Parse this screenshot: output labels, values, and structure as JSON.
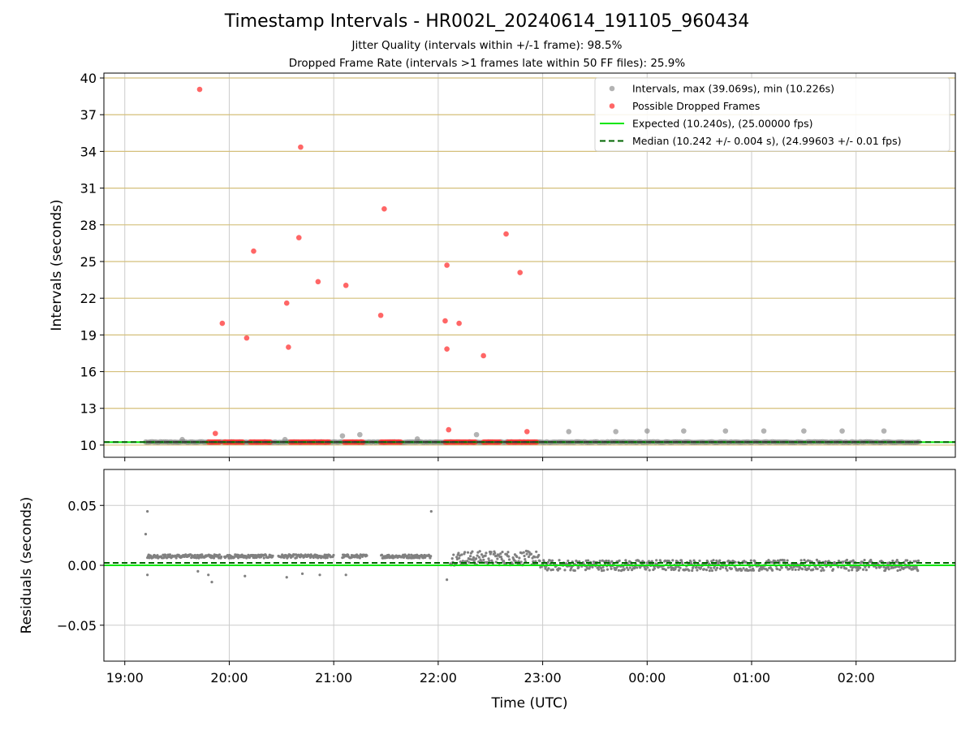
{
  "figure": {
    "title": "Timestamp Intervals - HR002L_20240614_191105_960434",
    "subtitle_1": "Jitter Quality (intervals within +/-1 frame): 98.5%",
    "subtitle_2": "Dropped Frame Rate (intervals >1 frames late within 50 FF files): 25.9%"
  },
  "colors": {
    "intervals": "#808080",
    "dropped": "#ff3333",
    "expected": "#00e600",
    "median": "#006400",
    "median_marker_line": "#333333",
    "gold_grid": "#d4bf7a",
    "grid": "#cccccc"
  },
  "chart_data": [
    {
      "type": "scatter",
      "panel": "top",
      "ylabel": "Intervals (seconds)",
      "ylim": [
        9.0,
        40.4
      ],
      "yticks": [
        10,
        13,
        16,
        19,
        22,
        25,
        28,
        31,
        34,
        37,
        40
      ],
      "xlim": [
        "19:00 -0.2h",
        "02:00 +0.95h"
      ],
      "xticks": [
        "19:00",
        "20:00",
        "21:00",
        "22:00",
        "23:00",
        "00:00",
        "01:00",
        "02:00"
      ],
      "grid": "on",
      "legend_placement": "top-right",
      "legend": [
        "Intervals, max (39.069s), min (10.226s)",
        "Possible Dropped Frames",
        "Expected (10.240s), (25.00000 fps)",
        "Median (10.242 +/- 0.004 s), (24.99603 +/- 0.01 fps)"
      ],
      "series": [
        {
          "name": "Intervals, max (39.069s), min (10.226s)",
          "kind": "scatter",
          "x_range": [
            "19:12",
            "02:36"
          ],
          "baseline_y": 10.24,
          "outliers": [
            {
              "x": "19:33",
              "y": 10.45
            },
            {
              "x": "20:32",
              "y": 10.45
            },
            {
              "x": "21:05",
              "y": 10.75
            },
            {
              "x": "21:15",
              "y": 10.85
            },
            {
              "x": "21:48",
              "y": 10.5
            },
            {
              "x": "22:22",
              "y": 10.85
            },
            {
              "x": "23:15",
              "y": 11.1
            },
            {
              "x": "23:42",
              "y": 11.1
            },
            {
              "x": "00:00",
              "y": 11.15
            },
            {
              "x": "00:21",
              "y": 11.15
            },
            {
              "x": "00:45",
              "y": 11.15
            },
            {
              "x": "01:07",
              "y": 11.15
            },
            {
              "x": "01:30",
              "y": 11.15
            },
            {
              "x": "01:52",
              "y": 11.15
            },
            {
              "x": "02:16",
              "y": 11.15
            }
          ]
        },
        {
          "name": "Possible Dropped Frames",
          "kind": "scatter",
          "points": [
            {
              "x": "19:43",
              "y": 39.07
            },
            {
              "x": "19:52",
              "y": 10.95
            },
            {
              "x": "19:56",
              "y": 19.95
            },
            {
              "x": "20:10",
              "y": 18.75
            },
            {
              "x": "20:14",
              "y": 25.85
            },
            {
              "x": "20:33",
              "y": 21.6
            },
            {
              "x": "20:34",
              "y": 18.0
            },
            {
              "x": "20:40",
              "y": 26.95
            },
            {
              "x": "20:41",
              "y": 34.35
            },
            {
              "x": "20:51",
              "y": 23.35
            },
            {
              "x": "21:07",
              "y": 23.05
            },
            {
              "x": "21:27",
              "y": 20.6
            },
            {
              "x": "21:29",
              "y": 29.3
            },
            {
              "x": "22:04",
              "y": 20.15
            },
            {
              "x": "22:05",
              "y": 17.85
            },
            {
              "x": "22:05",
              "y": 24.7
            },
            {
              "x": "22:06",
              "y": 11.25
            },
            {
              "x": "22:12",
              "y": 19.95
            },
            {
              "x": "22:26",
              "y": 17.3
            },
            {
              "x": "22:39",
              "y": 27.25
            },
            {
              "x": "22:47",
              "y": 24.1
            },
            {
              "x": "22:51",
              "y": 11.1
            }
          ],
          "bands": [
            {
              "x_from": "19:48",
              "x_to": "19:55",
              "y": 10.24
            },
            {
              "x_from": "19:57",
              "x_to": "20:08",
              "y": 10.24
            },
            {
              "x_from": "20:12",
              "x_to": "20:24",
              "y": 10.24
            },
            {
              "x_from": "20:35",
              "x_to": "20:58",
              "y": 10.24
            },
            {
              "x_from": "21:06",
              "x_to": "21:17",
              "y": 10.24
            },
            {
              "x_from": "21:27",
              "x_to": "21:39",
              "y": 10.24
            },
            {
              "x_from": "22:04",
              "x_to": "22:22",
              "y": 10.24
            },
            {
              "x_from": "22:26",
              "x_to": "22:36",
              "y": 10.24
            },
            {
              "x_from": "22:40",
              "x_to": "22:57",
              "y": 10.24
            }
          ]
        },
        {
          "name": "Expected (10.240s), (25.00000 fps)",
          "kind": "hline",
          "y": 10.24
        },
        {
          "name": "Median (10.242 +/- 0.004 s), (24.99603 +/- 0.01 fps)",
          "kind": "hline-dashed",
          "y": 10.242
        }
      ]
    },
    {
      "type": "scatter",
      "panel": "bottom",
      "ylabel": "Residuals (seconds)",
      "xlabel": "Time (UTC)",
      "ylim": [
        -0.08,
        0.08
      ],
      "yticks": [
        "−0.05",
        "0.00",
        "0.05"
      ],
      "grid": "on",
      "series": [
        {
          "name": "residuals",
          "kind": "scatter",
          "segments": [
            {
              "x_from": "19:13",
              "x_to": "21:58",
              "center": 0.0075,
              "spread": 0.0015
            },
            {
              "x_from": "22:07",
              "x_to": "22:58",
              "center": 0.006,
              "spread": 0.006
            },
            {
              "x_from": "22:58",
              "x_to": "02:36",
              "center": 0.0,
              "spread": 0.0045
            }
          ],
          "outliers": [
            {
              "x": "19:12",
              "y": 0.026
            },
            {
              "x": "19:13",
              "y": 0.045
            },
            {
              "x": "21:56",
              "y": 0.045
            },
            {
              "x": "19:13",
              "y": -0.008
            },
            {
              "x": "19:50",
              "y": -0.014
            },
            {
              "x": "19:48",
              "y": -0.008
            },
            {
              "x": "20:09",
              "y": -0.009
            },
            {
              "x": "20:33",
              "y": -0.01
            },
            {
              "x": "20:42",
              "y": -0.007
            },
            {
              "x": "20:52",
              "y": -0.008
            },
            {
              "x": "21:07",
              "y": -0.008
            },
            {
              "x": "22:05",
              "y": -0.012
            },
            {
              "x": "19:42",
              "y": -0.005
            }
          ]
        },
        {
          "name": "expected",
          "kind": "hline",
          "y": 0.0
        },
        {
          "name": "median",
          "kind": "hline-dashed",
          "y": 0.002
        }
      ]
    }
  ],
  "axes": {
    "bottom_xlabel": "Time (UTC)",
    "top_ylabel": "Intervals (seconds)",
    "bottom_ylabel": "Residuals (seconds)"
  }
}
